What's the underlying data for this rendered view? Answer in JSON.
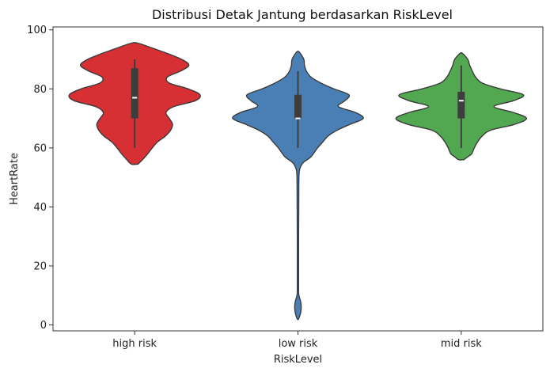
{
  "chart_data": {
    "type": "violin",
    "title": "Distribusi Detak Jantung berdasarkan RiskLevel",
    "xlabel": "RiskLevel",
    "ylabel": "HeartRate",
    "ylim": [
      -2,
      101
    ],
    "yticks": [
      0,
      20,
      40,
      60,
      80,
      100
    ],
    "grid": false,
    "categories": [
      "high risk",
      "low risk",
      "mid risk"
    ],
    "series": [
      {
        "category": "high risk",
        "color": "#d62f34",
        "median": 77,
        "q1": 70,
        "q3": 87,
        "whisker_low": 60,
        "whisker_high": 90,
        "density": [
          [
            54.5,
            0.05
          ],
          [
            56,
            0.12
          ],
          [
            58,
            0.2
          ],
          [
            60,
            0.27
          ],
          [
            62,
            0.35
          ],
          [
            64,
            0.47
          ],
          [
            66,
            0.55
          ],
          [
            68,
            0.58
          ],
          [
            70,
            0.53
          ],
          [
            72,
            0.48
          ],
          [
            74,
            0.6
          ],
          [
            76,
            0.93
          ],
          [
            78,
            1.0
          ],
          [
            80,
            0.82
          ],
          [
            82,
            0.53
          ],
          [
            84,
            0.5
          ],
          [
            86,
            0.7
          ],
          [
            88,
            0.83
          ],
          [
            90,
            0.72
          ],
          [
            92,
            0.5
          ],
          [
            94,
            0.25
          ],
          [
            95.5,
            0.05
          ]
        ]
      },
      {
        "category": "low risk",
        "color": "#4a7fb5",
        "median": 70,
        "q1": 70,
        "q3": 78,
        "whisker_low": 60,
        "whisker_high": 86,
        "density": [
          [
            2,
            0.01
          ],
          [
            4,
            0.04
          ],
          [
            6,
            0.05
          ],
          [
            8,
            0.04
          ],
          [
            10,
            0.015
          ],
          [
            12,
            0.01
          ],
          [
            20,
            0.01
          ],
          [
            30,
            0.01
          ],
          [
            40,
            0.012
          ],
          [
            50,
            0.015
          ],
          [
            53,
            0.03
          ],
          [
            55,
            0.08
          ],
          [
            57,
            0.2
          ],
          [
            60,
            0.3
          ],
          [
            62,
            0.38
          ],
          [
            64,
            0.46
          ],
          [
            66,
            0.6
          ],
          [
            68,
            0.8
          ],
          [
            70,
            1.0
          ],
          [
            72,
            0.88
          ],
          [
            74,
            0.62
          ],
          [
            76,
            0.72
          ],
          [
            78,
            0.78
          ],
          [
            80,
            0.55
          ],
          [
            82,
            0.35
          ],
          [
            84,
            0.2
          ],
          [
            86,
            0.13
          ],
          [
            88,
            0.1
          ],
          [
            90,
            0.09
          ],
          [
            92.5,
            0.02
          ]
        ]
      },
      {
        "category": "mid risk",
        "color": "#52a850",
        "median": 76,
        "q1": 70,
        "q3": 79,
        "whisker_low": 60,
        "whisker_high": 88,
        "density": [
          [
            56,
            0.04
          ],
          [
            57,
            0.1
          ],
          [
            58,
            0.16
          ],
          [
            60,
            0.2
          ],
          [
            62,
            0.25
          ],
          [
            64,
            0.32
          ],
          [
            66,
            0.45
          ],
          [
            68,
            0.82
          ],
          [
            70,
            1.0
          ],
          [
            72,
            0.8
          ],
          [
            74,
            0.5
          ],
          [
            76,
            0.8
          ],
          [
            78,
            0.95
          ],
          [
            80,
            0.6
          ],
          [
            82,
            0.32
          ],
          [
            84,
            0.22
          ],
          [
            86,
            0.17
          ],
          [
            88,
            0.13
          ],
          [
            90,
            0.1
          ],
          [
            92,
            0.02
          ]
        ]
      }
    ]
  }
}
